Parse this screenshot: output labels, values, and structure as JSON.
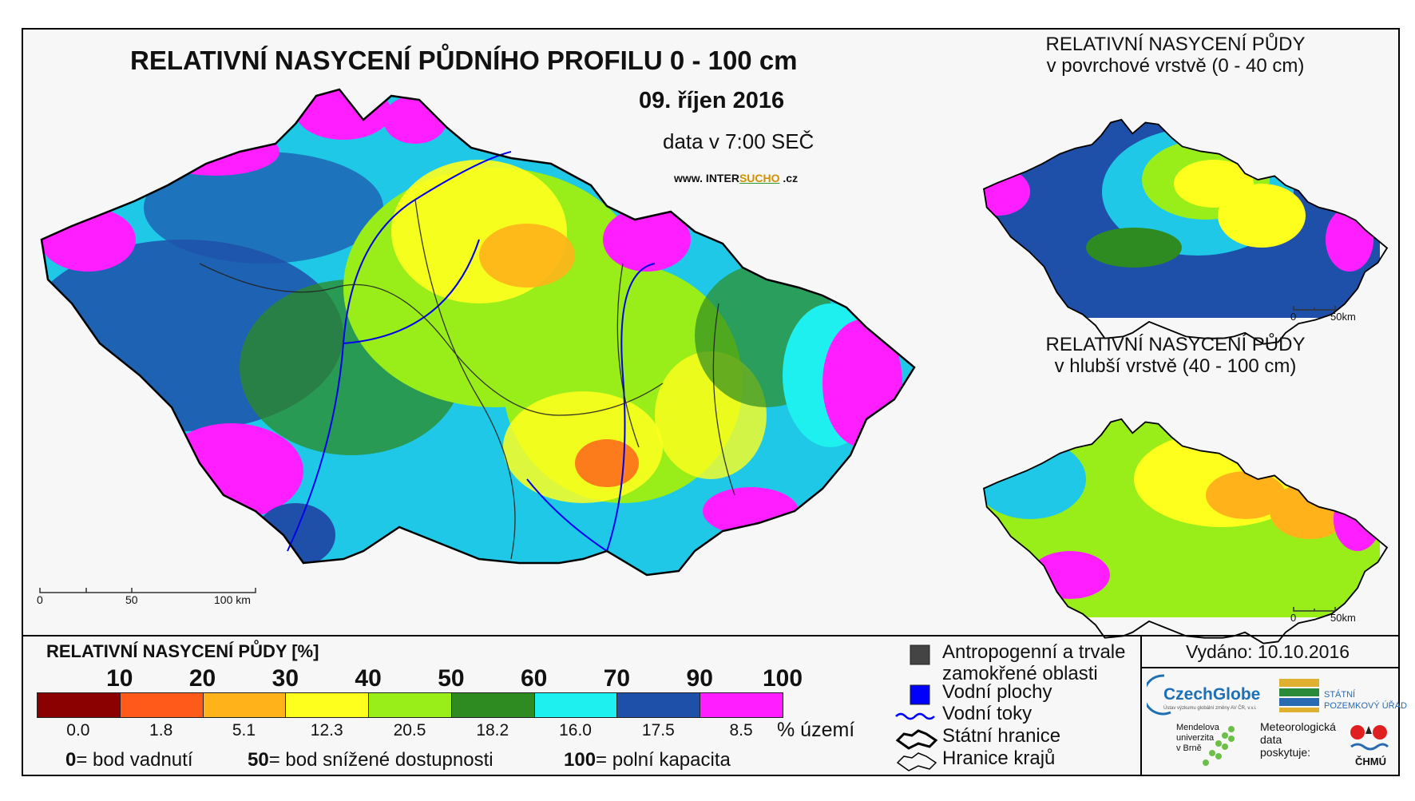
{
  "map": {
    "main_title": "RELATIVNÍ NASYCENÍ PŮDNÍHO PROFILU 0 - 100 cm",
    "date": "09. říjen 2016",
    "time": "data v 7:00 SEČ",
    "website_prefix": "www. INTER",
    "website_highlight": "SUCHO",
    "website_suffix": " .cz",
    "scale_main": [
      "0",
      "50",
      "100 km"
    ],
    "inset_surface": {
      "title_line1": "RELATIVNÍ NASYCENÍ PŮDY",
      "title_line2": "v povrchové vrstvě (0 - 40 cm)",
      "scale": [
        "0",
        "50km"
      ]
    },
    "inset_deep": {
      "title_line1": "RELATIVNÍ NASYCENÍ PŮDY",
      "title_line2": "v hlubší vrstvě (40 - 100 cm)",
      "scale": [
        "0",
        "50km"
      ]
    }
  },
  "legend": {
    "title": "RELATIVNÍ NASYCENÍ PŮDY [%]",
    "thresholds": [
      "10",
      "20",
      "30",
      "40",
      "50",
      "60",
      "70",
      "90",
      "100"
    ],
    "classes": [
      {
        "color": "#8b0000",
        "share": "0.0"
      },
      {
        "color": "#ff5a1a",
        "share": "1.8"
      },
      {
        "color": "#ffb21a",
        "share": "5.1"
      },
      {
        "color": "#ffff1e",
        "share": "12.3"
      },
      {
        "color": "#99ee1a",
        "share": "20.5"
      },
      {
        "color": "#2e8b22",
        "share": "18.2"
      },
      {
        "color": "#1ef0f0",
        "share": "16.0"
      },
      {
        "color": "#1e50aa",
        "share": "17.5"
      },
      {
        "color": "#ff1eff",
        "share": "8.5"
      }
    ],
    "share_unit": "% území",
    "notes": [
      {
        "value": "0",
        "text": "= bod vadnutí"
      },
      {
        "value": "50",
        "text": "= bod snížené dostupnosti"
      },
      {
        "value": "100",
        "text": "= polní kapacita"
      }
    ]
  },
  "symbols": [
    {
      "icon": "dark-gray-square-icon",
      "color": "#444444",
      "label_line1": "Antropogenní a trvale",
      "label_line2": "zamokřené oblasti"
    },
    {
      "icon": "blue-square-icon",
      "color": "#0000ff",
      "label_line1": "Vodní plochy",
      "label_line2": ""
    },
    {
      "icon": "wavy-line-icon",
      "color": "#0000ff",
      "label_line1": "Vodní toky",
      "label_line2": ""
    },
    {
      "icon": "country-border-icon",
      "color": "#000000",
      "label_line1": "Státní hranice",
      "label_line2": ""
    },
    {
      "icon": "region-border-icon",
      "color": "#000000",
      "label_line1": "Hranice krajů",
      "label_line2": ""
    }
  ],
  "issued": "Vydáno: 10.10.2016",
  "logos": {
    "czechglobe": "CzechGlobe",
    "czechglobe_sub": "Ústav výzkumu globální změny AV ČR, v.v.i.",
    "spu_line1": "STÁTNÍ",
    "spu_line2": "POZEMKOVÝ ÚŘAD",
    "mendel_line1": "Mendelova",
    "mendel_line2": "univerzita",
    "mendel_line3": "v Brně",
    "meteo_line1": "Meteorologická",
    "meteo_line2": "data",
    "meteo_line3": "poskytuje:",
    "chmu": "ČHMÚ"
  }
}
